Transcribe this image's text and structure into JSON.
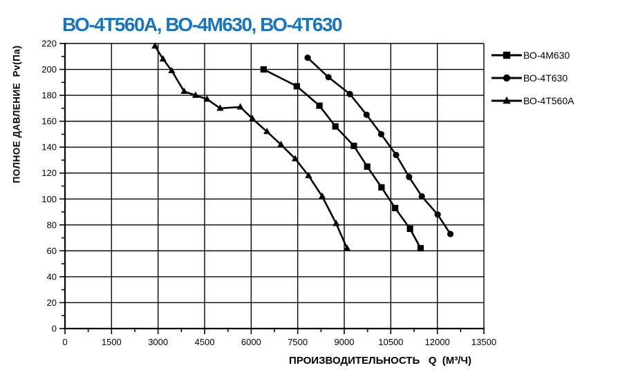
{
  "title": {
    "text": "ВО-4Т560А, ВО-4М630, ВО-4Т630",
    "color": "#1b75bc"
  },
  "chart_data": {
    "type": "line",
    "title": "ВО-4Т560А, ВО-4М630, ВО-4Т630",
    "xlabel": "ПРОИЗВОДИТЕЛЬНОСТЬ   Q  (М³/Ч)",
    "ylabel": "ПОЛНОЕ ДАВЛЕНИЕ  Pv(Па)",
    "xlim": [
      0,
      13500
    ],
    "ylim": [
      0,
      220
    ],
    "x_ticks": [
      0,
      1500,
      3000,
      4500,
      6000,
      7500,
      9000,
      10500,
      12000,
      13500
    ],
    "y_ticks": [
      0,
      20,
      40,
      60,
      80,
      100,
      120,
      140,
      160,
      180,
      200,
      220
    ],
    "x_minor_step": 750,
    "y_minor_step": 10,
    "grid": true,
    "legend_position": "right",
    "line_color": "#000000",
    "series": [
      {
        "name": "ВО-4М630",
        "marker": "square",
        "points": [
          [
            6400,
            200
          ],
          [
            7470,
            187
          ],
          [
            8200,
            172
          ],
          [
            8715,
            156
          ],
          [
            9310,
            141
          ],
          [
            9740,
            125
          ],
          [
            10200,
            109
          ],
          [
            10640,
            93
          ],
          [
            11120,
            77
          ],
          [
            11460,
            62
          ]
        ]
      },
      {
        "name": "ВО-4Т630",
        "marker": "circle",
        "points": [
          [
            7820,
            209
          ],
          [
            8490,
            194
          ],
          [
            9180,
            181
          ],
          [
            9720,
            165
          ],
          [
            10190,
            150
          ],
          [
            10670,
            134
          ],
          [
            11090,
            117
          ],
          [
            11500,
            102
          ],
          [
            12010,
            88
          ],
          [
            12420,
            73
          ]
        ]
      },
      {
        "name": "ВО-4Т560А",
        "marker": "triangle",
        "points": [
          [
            2900,
            218
          ],
          [
            3160,
            208
          ],
          [
            3440,
            199
          ],
          [
            3840,
            183
          ],
          [
            4210,
            180
          ],
          [
            4580,
            177
          ],
          [
            5000,
            170
          ],
          [
            5650,
            171
          ],
          [
            6040,
            162
          ],
          [
            6510,
            152
          ],
          [
            6960,
            142
          ],
          [
            7420,
            131
          ],
          [
            7850,
            118
          ],
          [
            8290,
            102
          ],
          [
            8740,
            81
          ],
          [
            9090,
            62
          ]
        ]
      }
    ]
  }
}
